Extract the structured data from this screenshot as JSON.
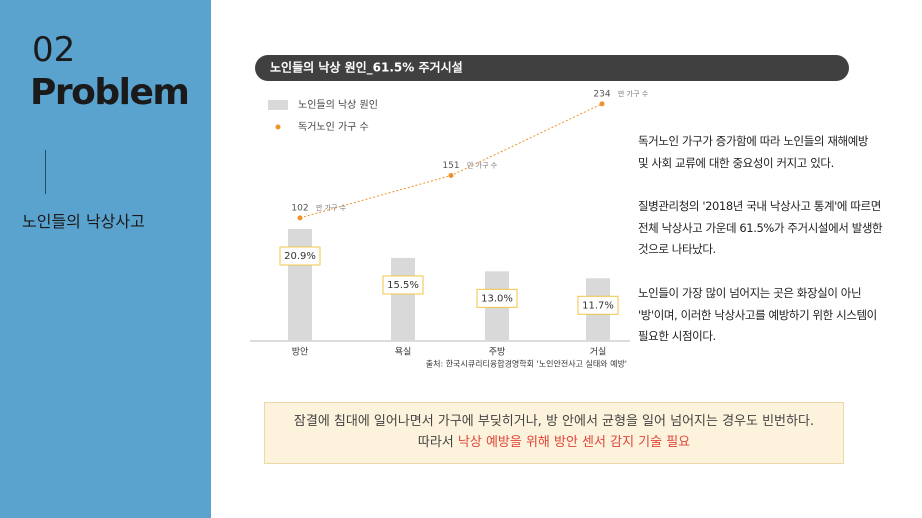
{
  "side": {
    "number": "02",
    "heading": "Problem",
    "topic": "노인들의 낙상사고"
  },
  "chart_data": [
    {
      "type": "bar",
      "title": "노인들의 낙상 원인_61.5% 주거시설",
      "series_name": "노인들의 낙상 원인",
      "color": "#d9d9d9",
      "categories": [
        "방안",
        "욕실",
        "주방",
        "거실"
      ],
      "values": [
        20.9,
        15.5,
        13.0,
        11.7
      ],
      "value_labels": [
        "20.9%",
        "15.5%",
        "13.0%",
        "11.7%"
      ],
      "source": "출처: 한국시큐리티융합경영학회 '노인안전사고 실태와 예방'"
    },
    {
      "type": "line",
      "series_name": "독거노인 가구 수",
      "color": "#f0922b",
      "values": [
        102,
        151,
        234
      ],
      "unit": "만 가구 수"
    }
  ],
  "paragraphs": [
    [
      "독거노인 가구가 증가함에 따라 노인들의 재해예방",
      "및 사회 교류에 대한 중요성이 커지고 있다."
    ],
    [
      "질병관리청의 '2018년 국내 낙상사고 통계'에 따르면",
      "전체 낙상사고 가운데 61.5%가 주거시설에서 발생한",
      "것으로 나타났다."
    ],
    [
      "노인들이 가장 많이 넘어지는 곳은 화장실이 아닌",
      "'방'이며, 이러한 낙상사고를 예방하기 위한 시스템이",
      "필요한 시점이다."
    ]
  ],
  "callout": {
    "line1": "잠결에 침대에 일어나면서 가구에 부딪히거나, 방 안에서 균형을 일어 넘어지는 경우도 빈번하다.",
    "line2_prefix": "따라서",
    "line2_highlight": "낙상 예방을 위해 방안 센서 감지 기술 필요"
  }
}
